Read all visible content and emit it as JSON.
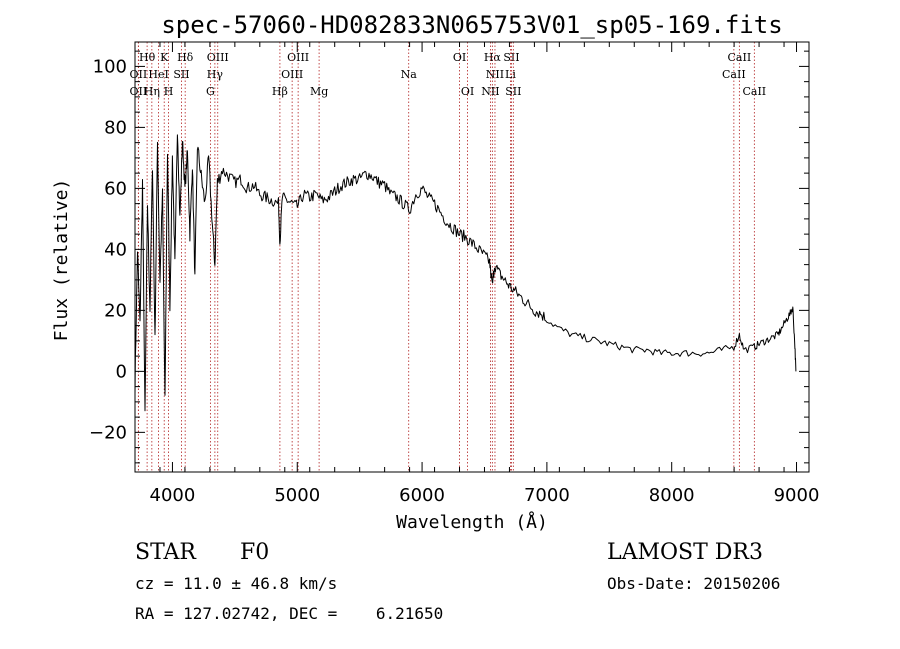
{
  "chart_data": {
    "type": "line",
    "title": "spec-57060-HD082833N065753V01_sp05-169.fits",
    "xlabel": "Wavelength (Å)",
    "ylabel": "Flux (relative)",
    "xlim": [
      3700,
      9100
    ],
    "ylim": [
      -33,
      108
    ],
    "xticks": [
      4000,
      5000,
      6000,
      7000,
      8000,
      9000
    ],
    "yticks": [
      -20,
      0,
      20,
      40,
      60,
      80,
      100
    ],
    "spectrum": {
      "x": [
        3700,
        3720,
        3740,
        3760,
        3780,
        3800,
        3820,
        3840,
        3860,
        3880,
        3900,
        3920,
        3940,
        3960,
        3980,
        4000,
        4020,
        4040,
        4060,
        4080,
        4100,
        4120,
        4140,
        4160,
        4180,
        4200,
        4230,
        4260,
        4290,
        4320,
        4340,
        4360,
        4400,
        4450,
        4500,
        4550,
        4600,
        4650,
        4700,
        4750,
        4800,
        4850,
        4861,
        4880,
        4920,
        4960,
        5000,
        5050,
        5100,
        5150,
        5200,
        5250,
        5300,
        5350,
        5400,
        5450,
        5500,
        5550,
        5600,
        5650,
        5700,
        5750,
        5800,
        5850,
        5900,
        5950,
        6000,
        6050,
        6100,
        6150,
        6200,
        6250,
        6300,
        6350,
        6400,
        6450,
        6500,
        6540,
        6563,
        6580,
        6620,
        6660,
        6700,
        6750,
        6800,
        6850,
        6900,
        6950,
        7000,
        7100,
        7200,
        7300,
        7400,
        7500,
        7600,
        7700,
        7800,
        7900,
        8000,
        8100,
        8200,
        8300,
        8400,
        8498,
        8542,
        8580,
        8662,
        8700,
        8750,
        8800,
        8850,
        8880,
        8920,
        8950,
        8970,
        8985,
        8995
      ],
      "y": [
        -5,
        40,
        15,
        62,
        -15,
        55,
        20,
        68,
        10,
        75,
        30,
        58,
        -10,
        72,
        22,
        70,
        35,
        80,
        50,
        76,
        60,
        72,
        45,
        68,
        30,
        74,
        64,
        55,
        70,
        48,
        35,
        62,
        66,
        64,
        62,
        63,
        60,
        61,
        58,
        57,
        56,
        55,
        42,
        57,
        56,
        55,
        54,
        58,
        57,
        58,
        56,
        57,
        59,
        61,
        62,
        63,
        63,
        65,
        64,
        62,
        61,
        58,
        57,
        55,
        53,
        58,
        60,
        57,
        55,
        52,
        49,
        47,
        45,
        44,
        42,
        40,
        38,
        36,
        28,
        35,
        32,
        30,
        28,
        26,
        24,
        22,
        20,
        19,
        17,
        14,
        12,
        11,
        10,
        9,
        8,
        7,
        7,
        6,
        6,
        6,
        6,
        6,
        7,
        8,
        12,
        7,
        8,
        9,
        10,
        11,
        12,
        14,
        17,
        19,
        21,
        10,
        0
      ]
    },
    "spectral_lines": [
      {
        "label": "Hθ",
        "x": 3797,
        "row": 1
      },
      {
        "label": "K",
        "x": 3934,
        "row": 1
      },
      {
        "label": "Hδ",
        "x": 4102,
        "row": 1
      },
      {
        "label": "OIII",
        "x": 4363,
        "row": 1
      },
      {
        "label": "OIII",
        "x": 5007,
        "row": 1
      },
      {
        "label": "OI",
        "x": 6300,
        "row": 1
      },
      {
        "label": "Hα",
        "x": 6563,
        "row": 1
      },
      {
        "label": "SII",
        "x": 6716,
        "row": 1
      },
      {
        "label": "CaII",
        "x": 8542,
        "row": 1
      },
      {
        "label": "OII",
        "x": 3727,
        "row": 2
      },
      {
        "label": "HeI",
        "x": 3889,
        "row": 2
      },
      {
        "label": "SII",
        "x": 4072,
        "row": 2
      },
      {
        "label": "Hγ",
        "x": 4340,
        "row": 2
      },
      {
        "label": "OIII",
        "x": 4959,
        "row": 2
      },
      {
        "label": "Na",
        "x": 5893,
        "row": 2
      },
      {
        "label": "NII",
        "x": 6584,
        "row": 2
      },
      {
        "label": "Li",
        "x": 6708,
        "row": 2
      },
      {
        "label": "CaII",
        "x": 8498,
        "row": 2
      },
      {
        "label": "OII",
        "x": 3727,
        "row": 3
      },
      {
        "label": "Hη",
        "x": 3835,
        "row": 3
      },
      {
        "label": "H",
        "x": 3969,
        "row": 3
      },
      {
        "label": "G",
        "x": 4304,
        "row": 3
      },
      {
        "label": "Hβ",
        "x": 4861,
        "row": 3
      },
      {
        "label": "Mg",
        "x": 5175,
        "row": 3
      },
      {
        "label": "OI",
        "x": 6364,
        "row": 3
      },
      {
        "label": "NII",
        "x": 6548,
        "row": 3
      },
      {
        "label": "SII",
        "x": 6731,
        "row": 3
      },
      {
        "label": "CaII",
        "x": 8662,
        "row": 3
      }
    ]
  },
  "info": {
    "object_type": "STAR",
    "subclass": "F0",
    "survey": "LAMOST DR3",
    "velocity": "cz = 11.0 ± 46.8 km/s",
    "obs_date": "Obs-Date: 20150206",
    "coords": "RA = 127.02742, DEC =    6.21650"
  }
}
